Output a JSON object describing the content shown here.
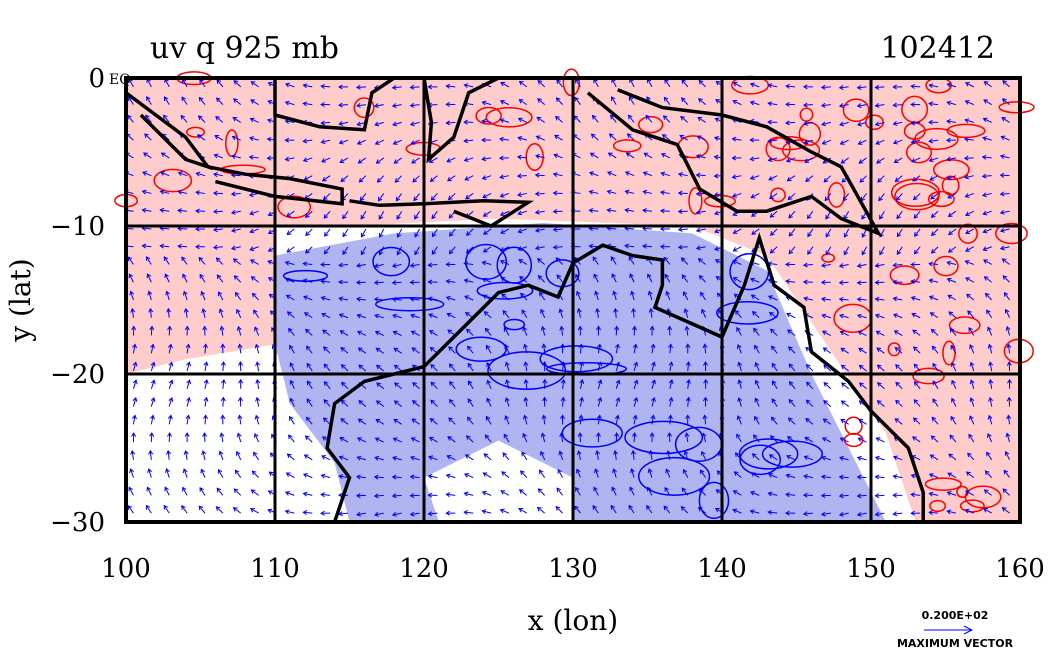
{
  "chart_data": {
    "type": "contour-vector-map",
    "title": "uv q 925 mb",
    "title_right": "102412",
    "xlabel": "x (lon)",
    "ylabel": "y (lat)",
    "xlim": [
      100,
      160
    ],
    "ylim": [
      -30,
      0
    ],
    "xticks": [
      100,
      110,
      120,
      130,
      140,
      150,
      160
    ],
    "yticks": [
      0,
      -10,
      -20,
      -30
    ],
    "ytick_labels": [
      "0",
      "−10",
      "−20",
      "−30"
    ],
    "equator_label": "EQ",
    "grid": true,
    "vector_legend": {
      "value_label": "0.200E+02",
      "caption": "MAXIMUM VECTOR"
    },
    "colors": {
      "positive": "#ff0000",
      "positive_fill": "#ffcccc",
      "negative": "#0000ff",
      "negative_fill": "#b0b4f0",
      "coast": "#000000"
    }
  }
}
